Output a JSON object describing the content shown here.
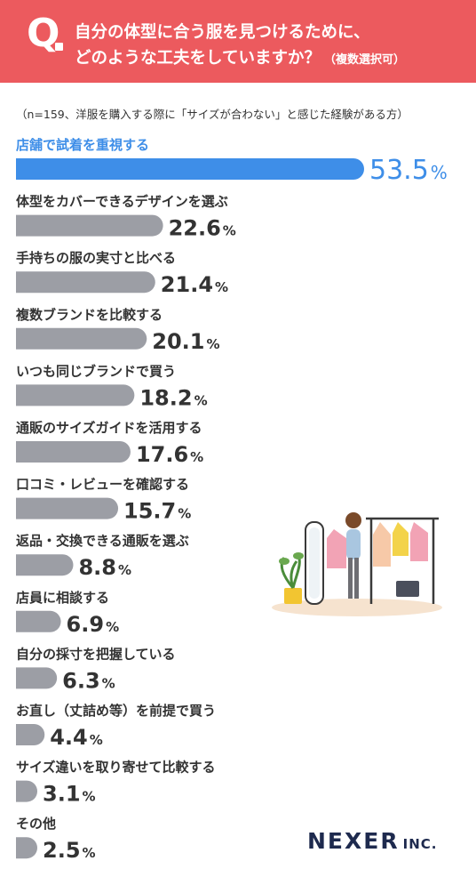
{
  "header": {
    "q_mark": "Q",
    "question_line1": "自分の体型に合う服を見つけるために、",
    "question_line2": "どのような工夫をしていますか？",
    "question_note": "（複数選択可）"
  },
  "sample_note": "（n=159、洋服を購入する際に「サイズが合わない」と感じた経験がある方）",
  "colors": {
    "header_bg": "#ec5a5e",
    "highlight_bar": "#3e8ee8",
    "bar": "#9c9ea5",
    "highlight_text": "#3e8ee8",
    "logo": "#1e2a4e"
  },
  "chart_data": {
    "type": "bar",
    "orientation": "horizontal",
    "unit": "%",
    "xlim": [
      0,
      53.5
    ],
    "categories": [
      "店舗で試着を重視する",
      "体型をカバーできるデザインを選ぶ",
      "手持ちの服の実寸と比べる",
      "複数ブランドを比較する",
      "いつも同じブランドで買う",
      "通販のサイズガイドを活用する",
      "口コミ・レビューを確認する",
      "返品・交換できる通販を選ぶ",
      "店員に相談する",
      "自分の採寸を把握している",
      "お直し（丈詰め等）を前提で買う",
      "サイズ違いを取り寄せて比較する",
      "その他"
    ],
    "values": [
      53.5,
      22.6,
      21.4,
      20.1,
      18.2,
      17.6,
      15.7,
      8.8,
      6.9,
      6.3,
      4.4,
      3.1,
      2.5
    ],
    "value_labels": [
      "53.5",
      "22.6",
      "21.4",
      "20.1",
      "18.2",
      "17.6",
      "15.7",
      "8.8",
      "6.9",
      "6.3",
      "4.4",
      "3.1",
      "2.5"
    ],
    "highlight_index": 0
  },
  "logo": {
    "main": "NEXER",
    "suffix": "INC."
  },
  "illustration": {
    "icon": "woman-choosing-clothes-illustration"
  }
}
